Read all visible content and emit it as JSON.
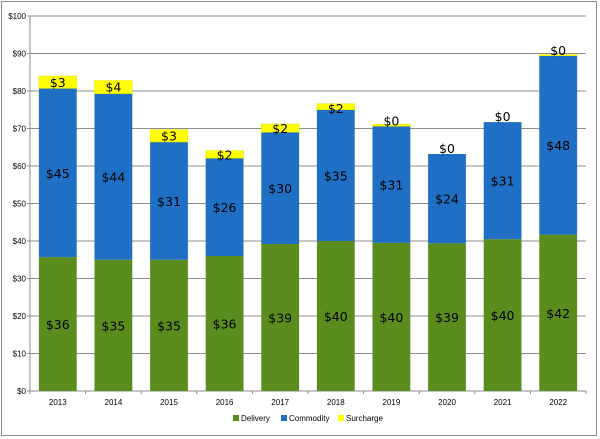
{
  "chart_data": {
    "type": "bar",
    "stacked": true,
    "categories": [
      "2013",
      "2014",
      "2015",
      "2016",
      "2017",
      "2018",
      "2019",
      "2020",
      "2021",
      "2022"
    ],
    "series": [
      {
        "name": "Delivery",
        "color": "#5b8c1e",
        "values": [
          35.7,
          35.0,
          35.0,
          36.0,
          39.2,
          40.0,
          39.5,
          39.4,
          40.5,
          41.7
        ],
        "labels": [
          "$36",
          "$35",
          "$35",
          "$36",
          "$39",
          "$40",
          "$40",
          "$39",
          "$40",
          "$42"
        ]
      },
      {
        "name": "Commodity",
        "color": "#1f6fc4",
        "values": [
          45.0,
          44.3,
          31.4,
          26.1,
          29.8,
          35.0,
          31.1,
          23.8,
          31.2,
          47.7
        ],
        "labels": [
          "$45",
          "$44",
          "$31",
          "$26",
          "$30",
          "$35",
          "$31",
          "$24",
          "$31",
          "$48"
        ]
      },
      {
        "name": "Surcharge",
        "color": "#ffff00",
        "values": [
          3.3,
          3.5,
          3.3,
          2.0,
          2.2,
          1.6,
          0.5,
          0.0,
          0.0,
          0.3
        ],
        "labels": [
          "$3",
          "$4",
          "$3",
          "$2",
          "$2",
          "$2",
          "$0",
          "$0",
          "$0",
          "$0"
        ]
      }
    ],
    "ylim": [
      0,
      100
    ],
    "yticks": [
      0,
      10,
      20,
      30,
      40,
      50,
      60,
      70,
      80,
      90,
      100
    ],
    "ytick_labels": [
      "$0",
      "$10",
      "$20",
      "$30",
      "$40",
      "$50",
      "$60",
      "$70",
      "$80",
      "$90",
      "$100"
    ],
    "grid": true,
    "legend_position": "bottom"
  }
}
